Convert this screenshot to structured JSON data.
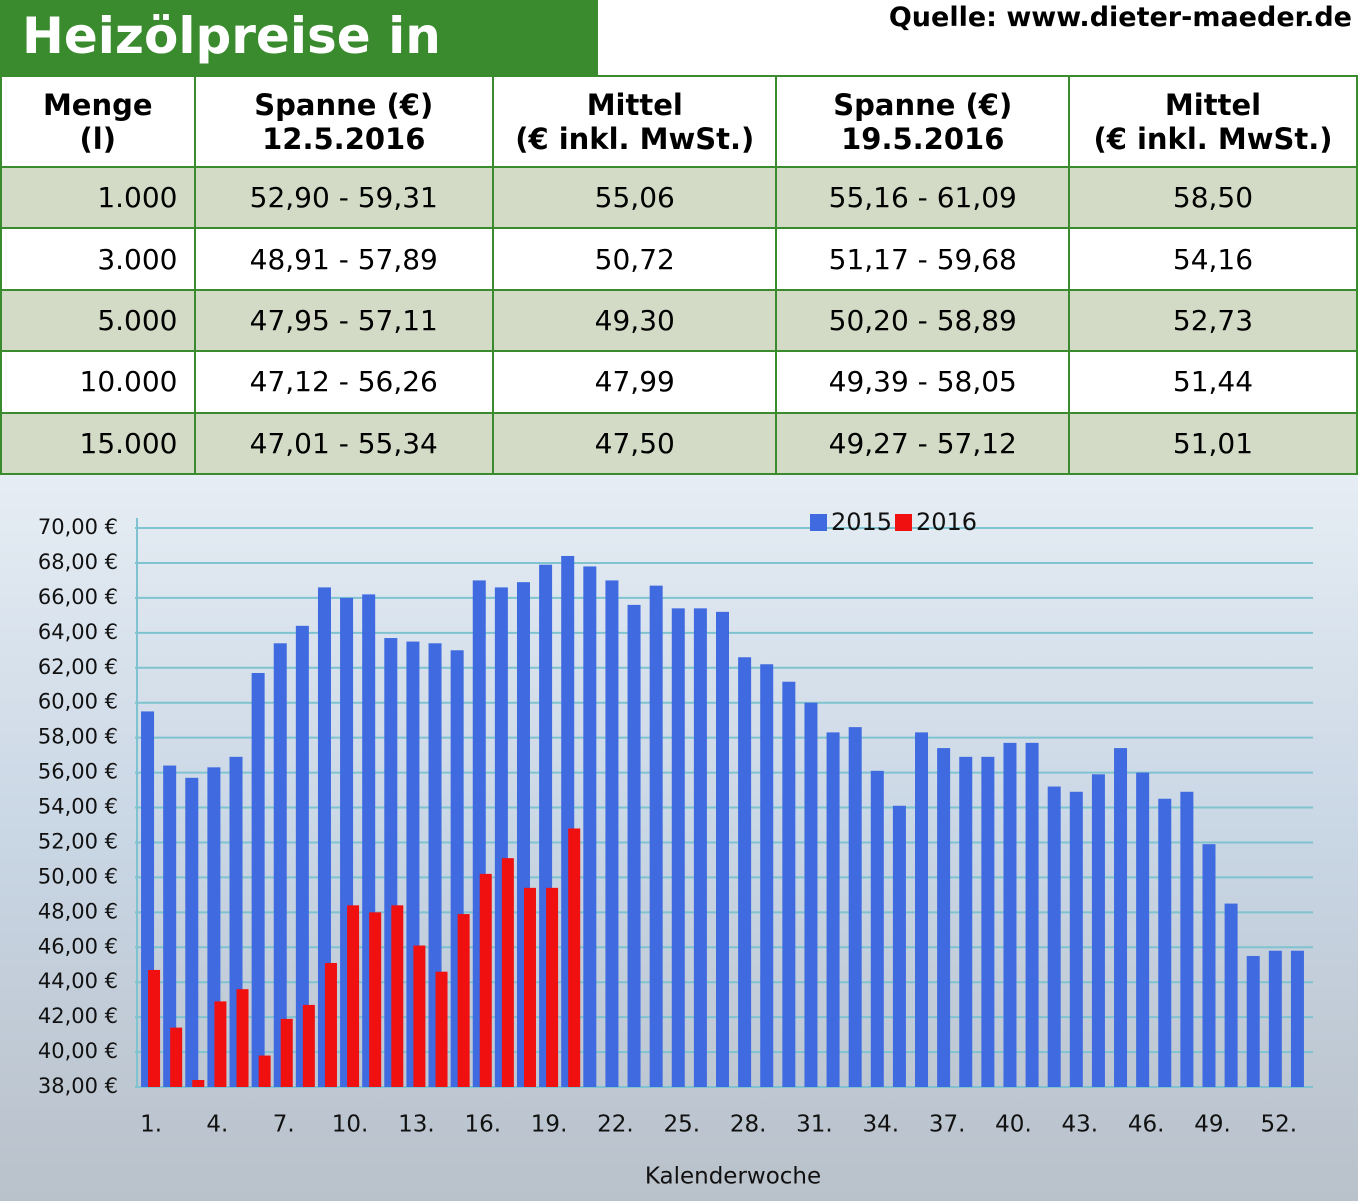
{
  "header": {
    "title": "Heizölpreise in Berlin",
    "source": "Quelle: www.dieter-maeder.de"
  },
  "table": {
    "header": [
      [
        "Menge",
        "(l)"
      ],
      [
        "Spanne (€)",
        "12.5.2016"
      ],
      [
        "Mittel",
        "(€ inkl. MwSt.)"
      ],
      [
        "Spanne (€)",
        "19.5.2016"
      ],
      [
        "Mittel",
        "(€ inkl. MwSt.)"
      ]
    ],
    "rows": [
      [
        "1.000",
        "52,90 - 59,31",
        "55,06",
        "55,16 - 61,09",
        "58,50"
      ],
      [
        "3.000",
        "48,91 - 57,89",
        "50,72",
        "51,17 - 59,68",
        "54,16"
      ],
      [
        "5.000",
        "47,95 - 57,11",
        "49,30",
        "50,20 - 58,89",
        "52,73"
      ],
      [
        "10.000",
        "47,12 - 56,26",
        "47,99",
        "49,39 - 58,05",
        "51,44"
      ],
      [
        "15.000",
        "47,01 - 55,34",
        "47,50",
        "49,27 - 57,12",
        "51,01"
      ]
    ]
  },
  "chart_data": {
    "type": "bar",
    "x_label": "Kalenderwoche",
    "categories": [
      "1.",
      null,
      null,
      "4.",
      null,
      null,
      "7.",
      null,
      null,
      "10.",
      null,
      null,
      "13.",
      null,
      null,
      "16.",
      null,
      null,
      "19.",
      null,
      null,
      "22.",
      null,
      null,
      "25.",
      null,
      null,
      "28.",
      null,
      null,
      "31.",
      null,
      null,
      "34.",
      null,
      null,
      "37.",
      null,
      null,
      "40.",
      null,
      null,
      "43.",
      null,
      null,
      "46.",
      null,
      null,
      "49.",
      null,
      null,
      "52.",
      null
    ],
    "series": [
      {
        "name": "2015",
        "color": "#3f6ae0",
        "values": [
          59.5,
          56.4,
          55.7,
          56.3,
          56.9,
          61.7,
          63.4,
          64.4,
          66.6,
          66.0,
          66.2,
          63.7,
          63.5,
          63.4,
          63.0,
          67.0,
          66.6,
          66.9,
          67.9,
          68.4,
          67.8,
          67.0,
          65.6,
          66.7,
          65.4,
          65.4,
          65.2,
          62.6,
          62.2,
          61.2,
          60.0,
          58.3,
          58.6,
          56.1,
          54.1,
          58.3,
          57.4,
          56.9,
          56.9,
          57.7,
          57.7,
          55.2,
          54.9,
          55.9,
          57.4,
          56.0,
          54.5,
          54.9,
          51.9,
          48.5,
          45.5,
          45.8,
          45.8
        ]
      },
      {
        "name": "2016",
        "color": "#f01010",
        "values": [
          44.7,
          41.4,
          38.4,
          42.9,
          43.6,
          39.8,
          41.9,
          42.7,
          45.1,
          48.4,
          48.0,
          48.4,
          46.1,
          44.6,
          47.9,
          50.2,
          51.1,
          49.4,
          49.4,
          52.8,
          null,
          null,
          null,
          null,
          null,
          null,
          null,
          null,
          null,
          null,
          null,
          null,
          null,
          null,
          null,
          null,
          null,
          null,
          null,
          null,
          null,
          null,
          null,
          null,
          null,
          null,
          null,
          null,
          null,
          null,
          null,
          null,
          null
        ]
      }
    ],
    "ylim": [
      38,
      70
    ],
    "yticks": [
      {
        "value": 38,
        "label": "38,00 €"
      },
      {
        "value": 40,
        "label": "40,00 €"
      },
      {
        "value": 42,
        "label": "42,00 €"
      },
      {
        "value": 44,
        "label": "44,00 €"
      },
      {
        "value": 46,
        "label": "46,00 €"
      },
      {
        "value": 48,
        "label": "48,00 €"
      },
      {
        "value": 50,
        "label": "50,00 €"
      },
      {
        "value": 52,
        "label": "52,00 €"
      },
      {
        "value": 54,
        "label": "54,00 €"
      },
      {
        "value": 56,
        "label": "56,00 €"
      },
      {
        "value": 58,
        "label": "58,00 €"
      },
      {
        "value": 60,
        "label": "60,00 €"
      },
      {
        "value": 62,
        "label": "62,00 €"
      },
      {
        "value": 64,
        "label": "64,00 €"
      },
      {
        "value": 66,
        "label": "66,00 €"
      },
      {
        "value": 68,
        "label": "68,00 €"
      },
      {
        "value": 70,
        "label": "70,00 €"
      }
    ],
    "grid": true,
    "legend": "top"
  }
}
